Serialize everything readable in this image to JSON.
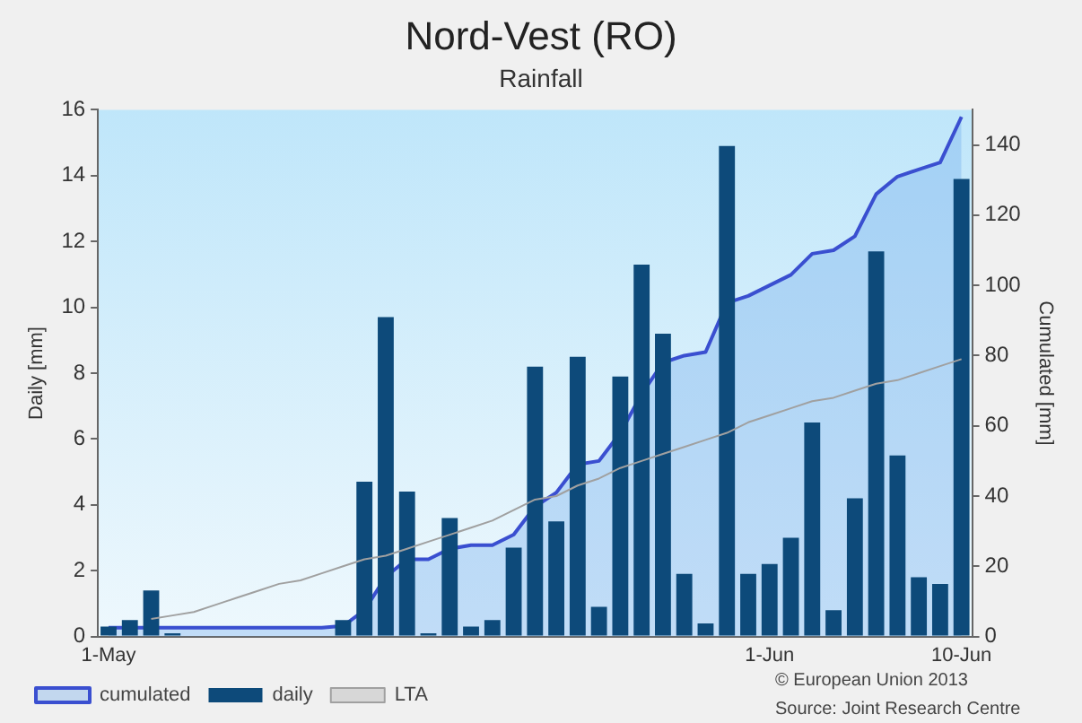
{
  "chart_data": {
    "type": "bar",
    "title": "Nord-Vest (RO)",
    "subtitle": "Rainfall",
    "ylabel": "Daily [mm]",
    "y2label": "Cumulated [mm]",
    "categories": [
      "1-May",
      null,
      null,
      null,
      null,
      null,
      null,
      null,
      null,
      null,
      null,
      null,
      null,
      null,
      null,
      null,
      null,
      null,
      null,
      null,
      null,
      null,
      null,
      null,
      null,
      null,
      null,
      null,
      null,
      null,
      null,
      "1-Jun",
      null,
      null,
      null,
      null,
      null,
      null,
      null,
      null,
      "10-Jun"
    ],
    "series": [
      {
        "name": "cumulated",
        "type": "area",
        "axis": "y2",
        "color": "#3a4fd0",
        "values": [
          2.5,
          2.5,
          2.5,
          2.5,
          2.5,
          2.5,
          2.5,
          2.5,
          2.5,
          2.5,
          2.5,
          3,
          7.5,
          17,
          22,
          22,
          25,
          26,
          26,
          29,
          37,
          41,
          49,
          50,
          58,
          69,
          78,
          80,
          81,
          95,
          97,
          100,
          103,
          109,
          110,
          114,
          126,
          131,
          133,
          135,
          148
        ]
      },
      {
        "name": "daily",
        "type": "bar",
        "color": "#0d4a7a",
        "values": [
          0.3,
          0.5,
          1.4,
          0.1,
          0,
          0,
          0,
          0,
          0,
          0,
          0,
          0.5,
          4.7,
          9.7,
          4.4,
          0.1,
          3.6,
          0.3,
          0.5,
          2.7,
          8.2,
          3.5,
          8.5,
          0.9,
          7.9,
          11.3,
          9.2,
          1.9,
          0.4,
          14.9,
          1.9,
          2.2,
          3.0,
          6.5,
          0.8,
          4.2,
          11.7,
          5.5,
          1.8,
          1.6,
          13.9
        ]
      },
      {
        "name": "LTA",
        "type": "line",
        "axis": "y2",
        "color": "#a0a0a0",
        "values": [
          null,
          null,
          5,
          6,
          7,
          9,
          11,
          13,
          15,
          16,
          18,
          20,
          22,
          23,
          25,
          27,
          29,
          31,
          33,
          36,
          39,
          40,
          43,
          45,
          48,
          50,
          52,
          54,
          56,
          58,
          61,
          63,
          65,
          67,
          68,
          70,
          72,
          73,
          75,
          77,
          79
        ]
      }
    ],
    "ylim": [
      0,
      16
    ],
    "yticks": [
      0,
      2,
      4,
      6,
      8,
      10,
      12,
      14,
      16
    ],
    "y2lim": [
      0,
      150
    ],
    "y2ticks": [
      0,
      20,
      40,
      60,
      80,
      100,
      120,
      140
    ],
    "grid": false,
    "legend": "bottom left",
    "annotations": [
      "© European Union 2013",
      "Source: Joint Research Centre"
    ]
  }
}
